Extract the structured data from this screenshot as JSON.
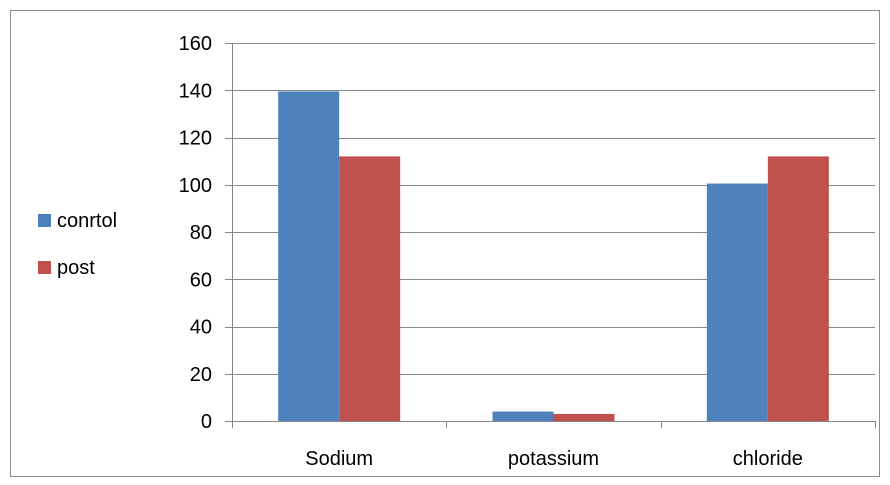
{
  "chart_data": {
    "type": "bar",
    "categories": [
      "Sodium",
      "potassium",
      "chloride"
    ],
    "series": [
      {
        "name": "conrtol",
        "values": [
          139.5,
          4,
          100.5
        ],
        "color": "#4f81bd"
      },
      {
        "name": "post",
        "values": [
          112,
          3,
          112
        ],
        "color": "#c0504d"
      }
    ],
    "ylim": [
      0,
      160
    ],
    "yticks": [
      0,
      20,
      40,
      60,
      80,
      100,
      120,
      140,
      160
    ],
    "grid": true,
    "legend_position": "left"
  }
}
